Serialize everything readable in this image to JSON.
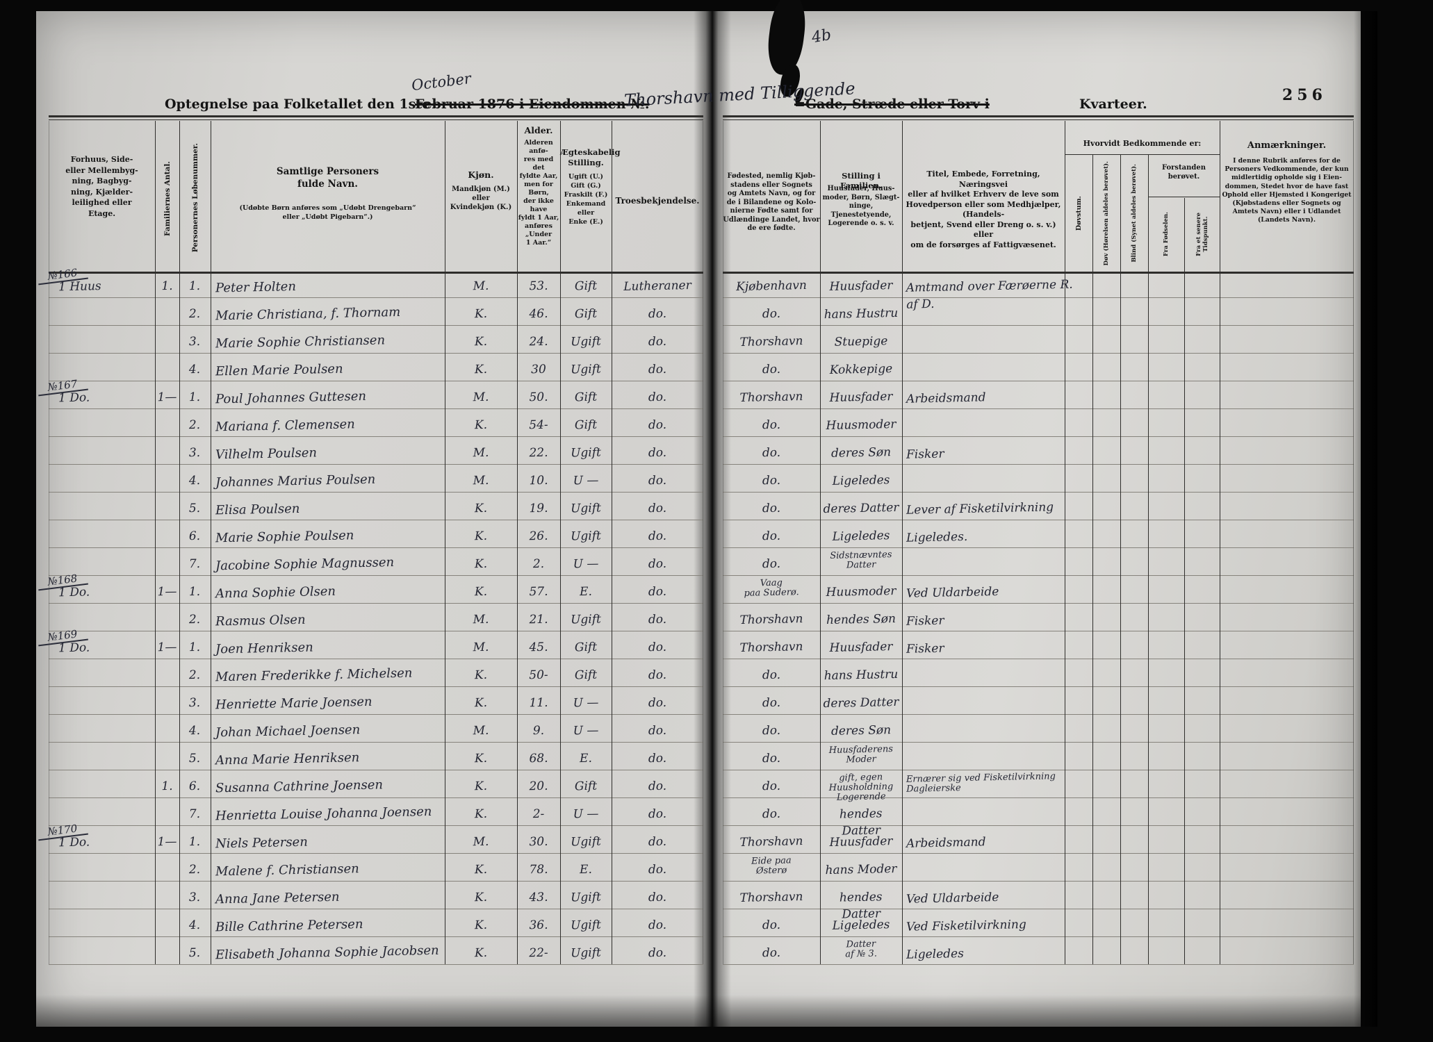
{
  "page_number": "256",
  "title": {
    "prefix": "Optegnelse paa Folketallet den 1ste",
    "struck_mid": "Februar 1876 i Eiendommen №.",
    "handwritten_month": "October",
    "handwritten_place": "Thorshavn med Tilliggende",
    "struck_street": "=Gade, Stræde eller Torv i",
    "kvarteer": "Kvarteer.",
    "handwritten_mark": "4b"
  },
  "header": {
    "bygning": "Forhuus, Side-\neller Mellembyg-\nning, Bagbyg-\nning, Kjælder-\nleilighed eller\nEtage.",
    "familier_vert": "Familiernes Antal.",
    "lobenummer_vert": "Personernes Løbenummer.",
    "navn_main": "Samtlige Personers\nfulde Navn.",
    "navn_small": "(Udøbte Børn anføres som „Udøbt Drengebarn“\neller „Udøbt Pigebarn“.)",
    "kjon_main": "Kjøn.",
    "kjon_small": "Mandkjøn (M.)\neller\nKvindekjøn (K.)",
    "alder_main": "Alder.",
    "alder_small": "Alderen anfø-\nres med det\nfyldte Aar,\nmen for Børn,\nder ikke have\nfyldt 1 Aar,\nanføres\n„Under\n1 Aar.“",
    "civil_main": "Ægteskabelig\nStilling.",
    "civil_small": "Ugift (U.)\nGift (G.)\nFraskilt (F.)\nEnkemand eller\nEnke (E.)",
    "tro": "Troesbekjendelse.",
    "fodested": "Fødested, nemlig Kjøb-\nstadens eller Sognets\nog Amtets Navn, og for\nde i Bilandene og Kolo-\nnierne Fødte samt for\nUdlændinge Landet, hvor\nde ere fødte.",
    "stilling_main": "Stilling i Familien.",
    "stilling_small": "Huusfader, Huus-\nmoder, Børn, Slægt-\nninge, Tjenestetyende,\nLogerende o. s. v.",
    "erhverv": "Titel, Embede, Forretning, Næringsvei\neller af hvilket Erhverv de leve som\nHovedperson eller som Medhjælper, (Handels-\nbetjent, Svend eller Dreng o. s. v.) eller\nom de forsørges af Fattigvæsenet.",
    "hvorvidt": "Hvorvidt Bedkommende er:",
    "dovstum_vert": "Døvstum.",
    "dov_vert": "Døv (Hørelsen aldeles berøvet).",
    "blind_vert": "Blind (Synet aldeles berøvet).",
    "forstanden": "Forstanden\nberøvet.",
    "fra_fodselen_vert": "Fra Fødselen.",
    "fra_senere_vert": "Fra et senere\nTidspunkt.",
    "anm_main": "Anmærkninger.",
    "anm_small": "I denne Rubrik anføres for de\nPersoners Vedkommende, der kun\nmidlertidig opholde sig i Eien-\ndommen, Stedet hvor de have fast\nOphold eller Hjemsted i Kongeriget\n(Kjøbstadens eller Sognets og\nAmtets Navn) eller i Udlandet\n(Landets Navn)."
  },
  "rows": [
    {
      "margin": "№166",
      "bygning": "1 Huus",
      "familier": "1.",
      "nr": "1.",
      "navn": "Peter Holten",
      "kjon": "M.",
      "alder": "53.",
      "civilstand": "Gift",
      "tro": "Lutheraner",
      "fodested": "Kjøbenhavn",
      "stilling": "Huusfader",
      "erhverv": "Amtmand over Færøerne R. af D."
    },
    {
      "nr": "2.",
      "navn": "Marie Christiana, f. Thornam",
      "kjon": "K.",
      "alder": "46.",
      "civilstand": "Gift",
      "tro": "do.",
      "fodested": "do.",
      "stilling": "hans Hustru"
    },
    {
      "nr": "3.",
      "navn": "Marie Sophie Christiansen",
      "kjon": "K.",
      "alder": "24.",
      "civilstand": "Ugift",
      "tro": "do.",
      "fodested": "Thorshavn",
      "stilling": "Stuepige"
    },
    {
      "nr": "4.",
      "navn": "Ellen Marie Poulsen",
      "kjon": "K.",
      "alder": "30",
      "civilstand": "Ugift",
      "tro": "do.",
      "fodested": "do.",
      "stilling": "Kokkepige"
    },
    {
      "margin": "№167",
      "bygning": "1 Do.",
      "familier": "1—",
      "nr": "1.",
      "navn": "Poul Johannes Guttesen",
      "kjon": "M.",
      "alder": "50.",
      "civilstand": "Gift",
      "tro": "do.",
      "fodested": "Thorshavn",
      "stilling": "Huusfader",
      "erhverv": "Arbeidsmand"
    },
    {
      "nr": "2.",
      "navn": "Mariana f. Clemensen",
      "kjon": "K.",
      "alder": "54-",
      "civilstand": "Gift",
      "tro": "do.",
      "fodested": "do.",
      "stilling": "Huusmoder"
    },
    {
      "nr": "3.",
      "navn": "Vilhelm Poulsen",
      "kjon": "M.",
      "alder": "22.",
      "civilstand": "Ugift",
      "tro": "do.",
      "fodested": "do.",
      "stilling": "deres Søn",
      "erhverv": "Fisker"
    },
    {
      "nr": "4.",
      "navn": "Johannes Marius Poulsen",
      "kjon": "M.",
      "alder": "10.",
      "civilstand": "U —",
      "tro": "do.",
      "fodested": "do.",
      "stilling": "Ligeledes"
    },
    {
      "nr": "5.",
      "navn": "Elisa Poulsen",
      "kjon": "K.",
      "alder": "19.",
      "civilstand": "Ugift",
      "tro": "do.",
      "fodested": "do.",
      "stilling": "deres Datter",
      "erhverv": "Lever af Fisketilvirkning"
    },
    {
      "nr": "6.",
      "navn": "Marie Sophie Poulsen",
      "kjon": "K.",
      "alder": "26.",
      "civilstand": "Ugift",
      "tro": "do.",
      "fodested": "do.",
      "stilling": "Ligeledes",
      "erhverv": "Ligeledes."
    },
    {
      "nr": "7.",
      "navn": "Jacobine Sophie Magnussen",
      "kjon": "K.",
      "alder": "2.",
      "civilstand": "U —",
      "tro": "do.",
      "fodested": "do.",
      "stilling": "Sidstnævntes\nDatter"
    },
    {
      "margin": "№168",
      "bygning": "1 Do.",
      "familier": "1—",
      "nr": "1.",
      "navn": "Anna Sophie Olsen",
      "kjon": "K.",
      "alder": "57.",
      "civilstand": "E.",
      "tro": "do.",
      "fodested": "Vaag\npaa Suderø.",
      "stilling": "Huusmoder",
      "erhverv": "Ved Uldarbeide"
    },
    {
      "nr": "2.",
      "navn": "Rasmus Olsen",
      "kjon": "M.",
      "alder": "21.",
      "civilstand": "Ugift",
      "tro": "do.",
      "fodested": "Thorshavn",
      "stilling": "hendes Søn",
      "erhverv": "Fisker"
    },
    {
      "margin": "№169",
      "bygning": "1 Do.",
      "familier": "1—",
      "nr": "1.",
      "navn": "Joen Henriksen",
      "kjon": "M.",
      "alder": "45.",
      "civilstand": "Gift",
      "tro": "do.",
      "fodested": "Thorshavn",
      "stilling": "Huusfader",
      "erhverv": "Fisker"
    },
    {
      "nr": "2.",
      "navn": "Maren Frederikke f. Michelsen",
      "kjon": "K.",
      "alder": "50-",
      "civilstand": "Gift",
      "tro": "do.",
      "fodested": "do.",
      "stilling": "hans Hustru"
    },
    {
      "nr": "3.",
      "navn": "Henriette Marie Joensen",
      "kjon": "K.",
      "alder": "11.",
      "civilstand": "U —",
      "tro": "do.",
      "fodested": "do.",
      "stilling": "deres Datter"
    },
    {
      "nr": "4.",
      "navn": "Johan Michael Joensen",
      "kjon": "M.",
      "alder": "9.",
      "civilstand": "U —",
      "tro": "do.",
      "fodested": "do.",
      "stilling": "deres Søn"
    },
    {
      "nr": "5.",
      "navn": "Anna Marie Henriksen",
      "kjon": "K.",
      "alder": "68.",
      "civilstand": "E.",
      "tro": "do.",
      "fodested": "do.",
      "stilling": "Huusfaderens\nModer"
    },
    {
      "familier": "1.",
      "nr": "6.",
      "navn": "Susanna Cathrine Joensen",
      "kjon": "K.",
      "alder": "20.",
      "civilstand": "Gift",
      "tro": "do.",
      "fodested": "do.",
      "stilling": "gift, egen Huusholdning\nLogerende",
      "erhverv": "Ernærer sig ved Fisketilvirkning\nDagleierske"
    },
    {
      "nr": "7.",
      "navn": "Henrietta Louise Johanna Joensen",
      "kjon": "K.",
      "alder": "2-",
      "civilstand": "U —",
      "tro": "do.",
      "fodested": "do.",
      "stilling": "hendes Datter"
    },
    {
      "margin": "№170",
      "bygning": "1 Do.",
      "familier": "1—",
      "nr": "1.",
      "navn": "Niels Petersen",
      "kjon": "M.",
      "alder": "30.",
      "civilstand": "Ugift",
      "tro": "do.",
      "fodested": "Thorshavn",
      "stilling": "Huusfader",
      "erhverv": "Arbeidsmand"
    },
    {
      "nr": "2.",
      "navn": "Malene f. Christiansen",
      "kjon": "K.",
      "alder": "78.",
      "civilstand": "E.",
      "tro": "do.",
      "fodested": "Eide paa\nØsterø",
      "stilling": "hans Moder"
    },
    {
      "nr": "3.",
      "navn": "Anna Jane Petersen",
      "kjon": "K.",
      "alder": "43.",
      "civilstand": "Ugift",
      "tro": "do.",
      "fodested": "Thorshavn",
      "stilling": "hendes Datter",
      "erhverv": "Ved Uldarbeide"
    },
    {
      "nr": "4.",
      "navn": "Bille Cathrine Petersen",
      "kjon": "K.",
      "alder": "36.",
      "civilstand": "Ugift",
      "tro": "do.",
      "fodested": "do.",
      "stilling": "Ligeledes",
      "erhverv": "Ved Fisketilvirkning"
    },
    {
      "nr": "5.",
      "navn": "Elisabeth Johanna Sophie Jacobsen",
      "kjon": "K.",
      "alder": "22-",
      "civilstand": "Ugift",
      "tro": "do.",
      "fodested": "do.",
      "stilling": "Datter\naf № 3.",
      "erhverv": "Ligeledes"
    }
  ]
}
